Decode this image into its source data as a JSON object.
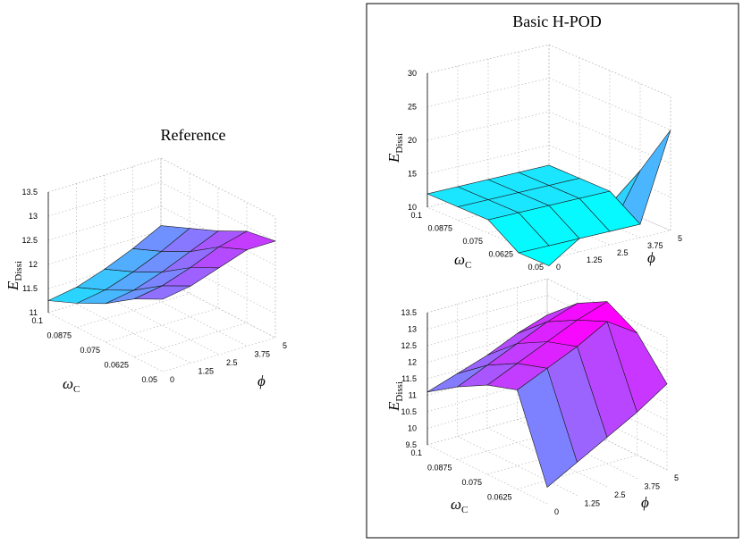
{
  "chart_data": [
    {
      "type": "surface",
      "title": "Reference",
      "xlabel_main": "ω",
      "xlabel_sub": "C",
      "ylabel": "ϕ",
      "zlabel_main": "E",
      "zlabel_sub": "Dissi",
      "omega_ticks": [
        "0.1",
        "0.0875",
        "0.075",
        "0.0625",
        "0.05"
      ],
      "phi_ticks": [
        "0",
        "1.25",
        "2.5",
        "3.75",
        "5"
      ],
      "z_ticks": [
        "11",
        "11.5",
        "12",
        "12.5",
        "13",
        "13.5"
      ],
      "zlim": [
        11,
        13.5
      ],
      "omega": [
        0.1,
        0.0875,
        0.075,
        0.0625,
        0.05
      ],
      "phi": [
        0,
        1.25,
        2.5,
        3.75,
        5
      ],
      "z": [
        [
          11.25,
          11.35,
          11.55,
          11.8,
          12.1
        ],
        [
          11.5,
          11.6,
          11.8,
          12.05,
          12.35
        ],
        [
          11.8,
          11.9,
          12.1,
          12.35,
          12.6
        ],
        [
          12.2,
          12.3,
          12.5,
          12.75,
          12.9
        ],
        [
          12.5,
          12.6,
          12.8,
          13.0,
          13.0
        ]
      ]
    },
    {
      "type": "surface",
      "title": "Basic H-POD",
      "xlabel_main": "ω",
      "xlabel_sub": "C",
      "ylabel": "ϕ",
      "zlabel_main": "E",
      "zlabel_sub": "Dissi",
      "omega_ticks": [
        "0.1",
        "0.0875",
        "0.075",
        "0.0625",
        "0.05"
      ],
      "phi_ticks": [
        "0",
        "1.25",
        "2.5",
        "3.75",
        "5"
      ],
      "z_ticks": [
        "10",
        "15",
        "20",
        "25",
        "30"
      ],
      "zlim": [
        10,
        30
      ],
      "omega": [
        0.1,
        0.0875,
        0.075,
        0.0625,
        0.05
      ],
      "phi": [
        0,
        1.25,
        2.5,
        3.75,
        5
      ],
      "z": [
        [
          12,
          12,
          12,
          12,
          12
        ],
        [
          12,
          12,
          12,
          12,
          12
        ],
        [
          12,
          12,
          12,
          12,
          12
        ],
        [
          9,
          9,
          9,
          9,
          9
        ],
        [
          9,
          12,
          16,
          20,
          25
        ]
      ]
    },
    {
      "type": "surface",
      "title": "",
      "xlabel_main": "ω",
      "xlabel_sub": "C",
      "ylabel": "ϕ",
      "zlabel_main": "E",
      "zlabel_sub": "Dissi",
      "omega_ticks": [
        "0.1",
        "0.0875",
        "0.075",
        "0.0625"
      ],
      "phi_ticks": [
        "0",
        "1.25",
        "2.5",
        "3.75",
        "5"
      ],
      "z_ticks": [
        "9.5",
        "10",
        "10.5",
        "11",
        "11.5",
        "12",
        "12.5",
        "13",
        "13.5"
      ],
      "zlim": [
        9.5,
        13.5
      ],
      "omega": [
        0.1,
        0.0875,
        0.075,
        0.0625,
        0.05
      ],
      "phi": [
        0,
        1.25,
        2.5,
        3.75,
        5
      ],
      "z": [
        [
          11.1,
          11.4,
          11.7,
          12.1,
          12.4
        ],
        [
          11.7,
          12.1,
          12.5,
          12.9,
          13.2
        ],
        [
          12.2,
          12.6,
          13.0,
          13.4,
          13.7
        ],
        [
          12.5,
          12.9,
          13.3,
          13.8,
          13.2
        ],
        [
          10.0,
          10.5,
          11.0,
          11.5,
          12.1
        ]
      ]
    }
  ]
}
